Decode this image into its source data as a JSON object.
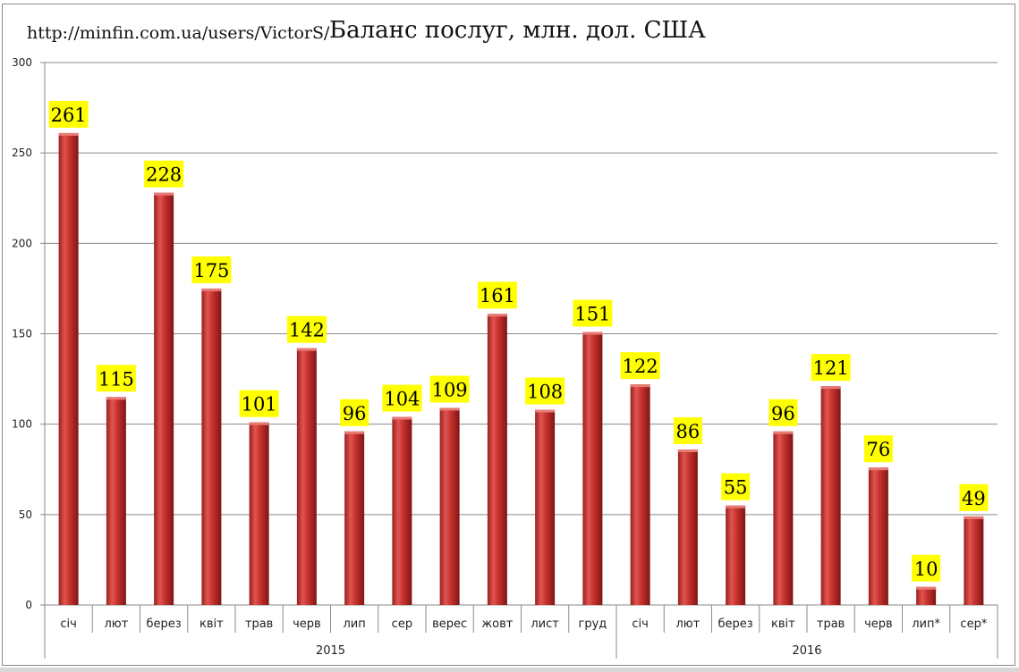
{
  "chart_data": {
    "type": "bar",
    "title": "Баланс послуг, млн. дол. США",
    "subtitle": "http://minfin.com.ua/users/VictorS/",
    "categories": [
      "січ",
      "лют",
      "берез",
      "квіт",
      "трав",
      "черв",
      "лип",
      "сер",
      "верес",
      "жовт",
      "лист",
      "груд",
      "січ",
      "лют",
      "берез",
      "квіт",
      "трав",
      "черв",
      "лип*",
      "сер*"
    ],
    "groups": [
      {
        "label": "2015",
        "count": 12
      },
      {
        "label": "2016",
        "count": 8
      }
    ],
    "values": [
      261,
      115,
      228,
      175,
      101,
      142,
      96,
      104,
      109,
      161,
      108,
      151,
      122,
      86,
      55,
      96,
      121,
      76,
      10,
      49
    ],
    "ylim": [
      0,
      300
    ],
    "yticks": [
      "0",
      "50",
      "100",
      "150",
      "200",
      "250",
      "300"
    ],
    "xlabel": "",
    "ylabel": "",
    "grid": true,
    "legend": "none",
    "colors": {
      "bar": "#c0302f",
      "bar_light": "#e8605a",
      "bar_dark": "#8e1a18",
      "label_bg": "#ffff00"
    }
  }
}
